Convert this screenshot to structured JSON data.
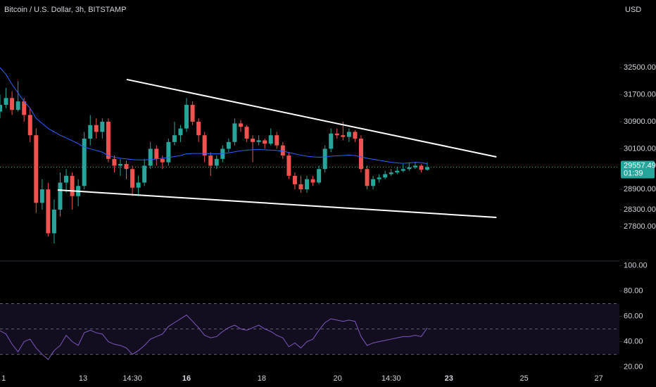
{
  "chart_data": {
    "type": "candlestick",
    "title": "Bitcoin / U.S. Dollar, 3h, BITSTAMP",
    "currency": "USD",
    "up_color": "#26a69a",
    "down_color": "#ef5350",
    "ohlc": [
      [
        31200,
        31700,
        31000,
        31400
      ],
      [
        31400,
        31900,
        31300,
        31600
      ],
      [
        31600,
        31800,
        31100,
        31250
      ],
      [
        31250,
        32100,
        31200,
        31500
      ],
      [
        31500,
        31600,
        30900,
        31100
      ],
      [
        31100,
        31300,
        30300,
        30500
      ],
      [
        30500,
        30700,
        28200,
        28500
      ],
      [
        28500,
        29200,
        28300,
        28900
      ],
      [
        28900,
        29100,
        27500,
        27600
      ],
      [
        27600,
        28600,
        27300,
        28300
      ],
      [
        28300,
        29400,
        28100,
        29100
      ],
      [
        29100,
        29500,
        28800,
        29300
      ],
      [
        29300,
        29400,
        28300,
        28700
      ],
      [
        28700,
        29200,
        28400,
        29000
      ],
      [
        29000,
        30600,
        28900,
        30400
      ],
      [
        30400,
        31100,
        30200,
        30800
      ],
      [
        30800,
        31000,
        30400,
        30600
      ],
      [
        30600,
        31000,
        30400,
        30900
      ],
      [
        30900,
        31000,
        29700,
        29800
      ],
      [
        29800,
        29900,
        29400,
        29600
      ],
      [
        29600,
        29800,
        29300,
        29650
      ],
      [
        29650,
        29750,
        29200,
        29500
      ],
      [
        29500,
        29600,
        28700,
        28950
      ],
      [
        28950,
        29300,
        28700,
        29100
      ],
      [
        29100,
        29800,
        29000,
        29600
      ],
      [
        29600,
        30300,
        29500,
        30100
      ],
      [
        30100,
        30200,
        29600,
        29800
      ],
      [
        29800,
        29900,
        29500,
        29700
      ],
      [
        29700,
        30400,
        29600,
        30300
      ],
      [
        30300,
        30900,
        30200,
        30500
      ],
      [
        30500,
        30800,
        30300,
        30700
      ],
      [
        30700,
        31600,
        30600,
        31400
      ],
      [
        31400,
        31500,
        30800,
        30900
      ],
      [
        30900,
        31000,
        30300,
        30500
      ],
      [
        30500,
        30600,
        29700,
        29900
      ],
      [
        29900,
        30000,
        29300,
        29600
      ],
      [
        29600,
        29900,
        29500,
        29800
      ],
      [
        29800,
        30200,
        29700,
        30100
      ],
      [
        30100,
        30400,
        30000,
        30300
      ],
      [
        30300,
        31000,
        30200,
        30850
      ],
      [
        30850,
        30950,
        30600,
        30750
      ],
      [
        30750,
        30800,
        30300,
        30400
      ],
      [
        30400,
        30500,
        29700,
        30300
      ],
      [
        30300,
        30500,
        30200,
        30350
      ],
      [
        30350,
        30400,
        30100,
        30250
      ],
      [
        30250,
        30700,
        30200,
        30500
      ],
      [
        30500,
        30600,
        30100,
        30200
      ],
      [
        30200,
        30300,
        29800,
        29900
      ],
      [
        29900,
        30000,
        29200,
        29300
      ],
      [
        29300,
        29400,
        28900,
        29050
      ],
      [
        29050,
        29300,
        28800,
        28900
      ],
      [
        28900,
        29300,
        28800,
        29200
      ],
      [
        29200,
        29300,
        29000,
        29100
      ],
      [
        29100,
        29600,
        29050,
        29500
      ],
      [
        29500,
        30200,
        29400,
        30100
      ],
      [
        30100,
        30700,
        30000,
        30550
      ],
      [
        30550,
        30700,
        30400,
        30500
      ],
      [
        30500,
        30900,
        30350,
        30450
      ],
      [
        30450,
        30700,
        30300,
        30600
      ],
      [
        30600,
        30650,
        30300,
        30400
      ],
      [
        30400,
        30500,
        29400,
        29500
      ],
      [
        29500,
        29600,
        28900,
        29000
      ],
      [
        29000,
        29300,
        28900,
        29200
      ],
      [
        29200,
        29350,
        29100,
        29250
      ],
      [
        29250,
        29450,
        29200,
        29350
      ],
      [
        29350,
        29500,
        29300,
        29400
      ],
      [
        29400,
        29550,
        29350,
        29450
      ],
      [
        29450,
        29650,
        29400,
        29500
      ],
      [
        29500,
        29700,
        29450,
        29550
      ],
      [
        29550,
        29700,
        29500,
        29600
      ],
      [
        29600,
        29650,
        29400,
        29480
      ],
      [
        29480,
        29700,
        29450,
        29557.49
      ]
    ],
    "ylim": [
      26800,
      34500
    ],
    "yticks": [
      {
        "value": 32500,
        "label": "32500.00"
      },
      {
        "value": 31700,
        "label": "31700.00"
      },
      {
        "value": 30900,
        "label": "30900.00"
      },
      {
        "value": 30100,
        "label": "30100.00"
      },
      {
        "value": 28900,
        "label": "28900.00"
      },
      {
        "value": 28300,
        "label": "28300.00"
      },
      {
        "value": 27800,
        "label": "27800.00"
      }
    ],
    "xlim": [
      0,
      102.93
    ],
    "xticks": [
      {
        "value": 0.6,
        "label": "1"
      },
      {
        "value": 13.8,
        "label": "13"
      },
      {
        "value": 22.0,
        "label": "14:30"
      },
      {
        "value": 31.0,
        "label": "16"
      },
      {
        "value": 43.5,
        "label": "18"
      },
      {
        "value": 56.1,
        "label": "20"
      },
      {
        "value": 65.0,
        "label": "14:30"
      },
      {
        "value": 74.6,
        "label": "23"
      },
      {
        "value": 87.1,
        "label": "25"
      },
      {
        "value": 99.5,
        "label": "27"
      }
    ],
    "ma": {
      "color": "#2962ff",
      "values": [
        32500,
        32300,
        32000,
        31750,
        31500,
        31300,
        31000,
        30850,
        30700,
        30600,
        30500,
        30420,
        30340,
        30250,
        30150,
        30100,
        30050,
        30000,
        29900,
        29850,
        29820,
        29800,
        29780,
        29770,
        29770,
        29780,
        29800,
        29820,
        29840,
        29870,
        29900,
        29950,
        29960,
        29960,
        29960,
        29950,
        29950,
        29960,
        29980,
        30010,
        30040,
        30060,
        30070,
        30080,
        30070,
        30060,
        30050,
        30030,
        29990,
        29950,
        29910,
        29880,
        29860,
        29850,
        29860,
        29880,
        29890,
        29900,
        29910,
        29900,
        29860,
        29820,
        29790,
        29760,
        29730,
        29700,
        29680,
        29670,
        29680,
        29700,
        29690,
        29660
      ]
    },
    "trendlines": [
      {
        "color": "#ffffff",
        "x": [
          21.05,
          82.5
        ],
        "y": [
          32150,
          29860
        ]
      },
      {
        "color": "#ffffff",
        "x": [
          9.6,
          82.5
        ],
        "y": [
          28880,
          28070
        ]
      }
    ],
    "countdown": "01:39",
    "rsi": {
      "type": "line",
      "color": "#7e57c2",
      "values": [
        48.6,
        46,
        38,
        32,
        40,
        42,
        35,
        30,
        26,
        33,
        37,
        45,
        40,
        37,
        47,
        49,
        47,
        46,
        40,
        38,
        37,
        35,
        30,
        33,
        37,
        42,
        44,
        46,
        52,
        55,
        58,
        61,
        56,
        51,
        45,
        43,
        44,
        48,
        51,
        53,
        50,
        49,
        51,
        53,
        50,
        48,
        45,
        43,
        36,
        39,
        35,
        40,
        42,
        49,
        55,
        58,
        57,
        56,
        57,
        56,
        44,
        37,
        39,
        40,
        41,
        42,
        43,
        44,
        44,
        45,
        44,
        50.8
      ],
      "ylim": [
        17,
        103
      ],
      "yticks": [
        {
          "value": 100,
          "label": "100.00"
        },
        {
          "value": 80,
          "label": "80.00"
        },
        {
          "value": 60,
          "label": "60.00"
        },
        {
          "value": 40,
          "label": "40.00"
        },
        {
          "value": 20,
          "label": "20.00"
        }
      ],
      "band": [
        30,
        70
      ],
      "midline": 50
    }
  }
}
